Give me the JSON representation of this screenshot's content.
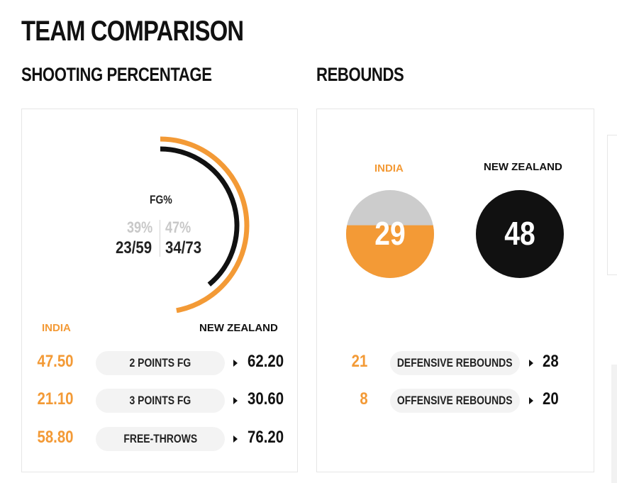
{
  "page": {
    "title": "TEAM COMPARISON"
  },
  "teams": {
    "home": "INDIA",
    "away": "NEW ZEALAND"
  },
  "colors": {
    "home": "#f39a36",
    "away": "#111111",
    "neutral": "#cccccc"
  },
  "shooting": {
    "section_title": "SHOOTING PERCENTAGE",
    "fg": {
      "label": "FG%",
      "home_pct": "39%",
      "away_pct": "47%",
      "home_made": "23/59",
      "away_made": "34/73",
      "home_fraction": 0.39,
      "away_fraction": 0.47
    },
    "rows": [
      {
        "label": "2 POINTS FG",
        "home": "47.50",
        "away": "62.20"
      },
      {
        "label": "3 POINTS FG",
        "home": "21.10",
        "away": "30.60"
      },
      {
        "label": "FREE-THROWS",
        "home": "58.80",
        "away": "76.20"
      }
    ]
  },
  "rebounds": {
    "section_title": "REBOUNDS",
    "home_total": "29",
    "away_total": "48",
    "home_fill_fraction": 0.6,
    "rows": [
      {
        "label": "DEFENSIVE REBOUNDS",
        "home": "21",
        "away": "28"
      },
      {
        "label": "OFFENSIVE REBOUNDS",
        "home": "8",
        "away": "20"
      }
    ]
  }
}
